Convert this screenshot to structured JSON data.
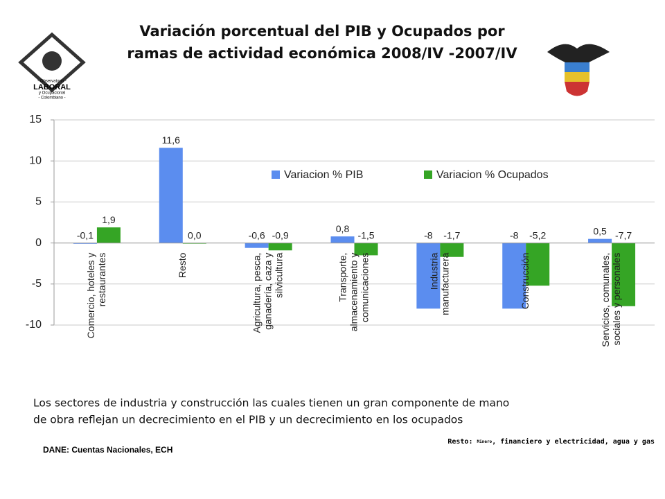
{
  "header": {
    "title": [
      "Variación porcentual del PIB y Ocupados  por",
      "ramas de actividad económica 2008/IV -2007/IV"
    ]
  },
  "logo": {
    "lines": [
      "- Observatorio -",
      "LABORAL",
      "y Ocupacional",
      "- Colombiano -"
    ]
  },
  "chart_data": {
    "type": "bar",
    "categories": [
      "Comercio, hoteles y\nrestaurantes",
      "Resto",
      "Agricultura, pesca,\nganadería, caza y\nsilvicultura",
      "Transporte,\nalmacenamiento y\ncomunicaciones",
      "Industria\nmanufacturera",
      "Construcción",
      "Servicios, comunales,\nsociales y personales"
    ],
    "series": [
      {
        "name": "Variacion % PIB",
        "color": "#5b8def",
        "values": [
          -0.1,
          11.6,
          -0.6,
          0.8,
          -8,
          -8,
          0.5
        ],
        "value_labels": [
          "-0,1",
          "11,6",
          "-0,6",
          "0,8",
          "-8",
          "-8",
          "0,5"
        ]
      },
      {
        "name": "Variacion % Ocupados",
        "color": "#35a525",
        "values": [
          1.9,
          0.0,
          -0.9,
          -1.5,
          -1.7,
          -5.2,
          -7.7
        ],
        "value_labels": [
          "1,9",
          "0,0",
          "-0,9",
          "-1,5",
          "-1,7",
          "-5,2",
          "-7,7"
        ]
      }
    ],
    "ylim": [
      -10,
      15
    ],
    "yticks": [
      -10,
      -5,
      0,
      5,
      10,
      15
    ],
    "grid": true,
    "legend": "top-right"
  },
  "notes": {
    "body": [
      "Los sectores de industria y construcción las cuales tienen un gran componente de mano",
      "de obra  reflejan un  decrecimiento   en el PIB  y un  decrecimiento  en los ocupados"
    ],
    "resto": [
      "Resto: ",
      "Minero",
      ", financiero y electricidad, agua y gas"
    ],
    "source": "DANE: Cuentas Nacionales, ECH"
  }
}
